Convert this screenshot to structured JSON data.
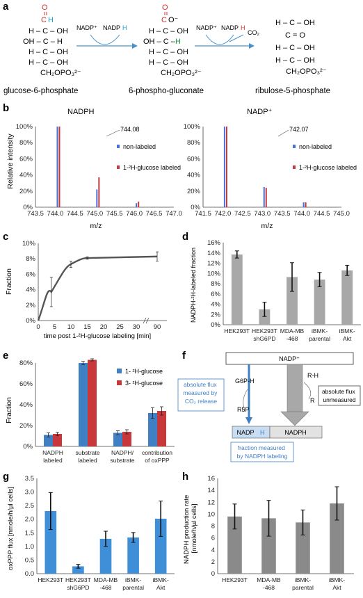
{
  "panels": {
    "a": {
      "letter": "a",
      "g6p": {
        "l1": "O",
        "l1b": "C",
        "l1c": "H",
        "l2": "H – C – OH",
        "l3": "OH – C – H",
        "l4": "H – C – OH",
        "l5": "H – C – OH",
        "l6": "CH₂OPO₃²⁻",
        "name": "glucose-6-phosphate"
      },
      "pg": {
        "l1": "O",
        "l1b": "C",
        "l1c": "O⁻",
        "l2": "H – C – OH",
        "l3": "OH – C –",
        "l3h": "H",
        "l4": "H – C – OH",
        "l5": "H – C – OH",
        "l6": "CH₂OPO₃²⁻",
        "name": "6-phospho-gluconate"
      },
      "r5p": {
        "l1": "H – C – OH",
        "l2": "C = O",
        "l3": "H – C – OH",
        "l4": "H – C – OH",
        "l5": "CH₂OPO₃²⁻",
        "name": "ribulose-5-phosphate"
      },
      "arrow1": {
        "nadp": "NADP⁺",
        "nadph_a": "NADP",
        "nadph_b": "H"
      },
      "arrow2": {
        "nadp": "NADP⁺",
        "nadph_a": "NADP",
        "nadph_b": "H",
        "co2": "CO₂"
      }
    },
    "b": {
      "letter": "b",
      "left": {
        "title": "NADPH",
        "peak_label": "744.08",
        "xlabel": "m/z",
        "ylabel": "Relative intensity"
      },
      "right": {
        "title": "NADP⁺",
        "peak_label": "742.07",
        "xlabel": "m/z"
      },
      "legend": {
        "s1": "non-labeled",
        "s2": "1-²H-glucose labeled"
      }
    },
    "c": {
      "letter": "c",
      "ylabel": "Fraction",
      "xlabel": "time post 1-²H-glucose labeling [min]"
    },
    "d": {
      "letter": "d",
      "ylabel": "NADPH-²H-labeled fraction"
    },
    "e": {
      "letter": "e",
      "ylabel": "Fraction",
      "legend": {
        "s1": "1- ²H-glucose",
        "s2": "3- ²H-glucose"
      }
    },
    "f": {
      "letter": "f",
      "nadp": "NADP⁺",
      "g6ph": "G6P-H",
      "r5p": "R5P",
      "rh": "R-H",
      "r": "R",
      "nadph_left_a": "NADP",
      "nadph_left_b": "H",
      "nadph_right": "NADPH",
      "box1": "absolute flux measured by CO₂ release",
      "box2": "absolute flux unmeasured",
      "box3": "fraction measured by NADPH labeling"
    },
    "g": {
      "letter": "g",
      "ylabel": "oxPPP flux [nmole/h/µl cells]"
    },
    "h": {
      "letter": "h",
      "ylabel": "NADPH production rate [nmole/h/µl cells]"
    }
  },
  "chart_data": [
    {
      "id": "b-left",
      "type": "bar",
      "title": "NADPH",
      "xlabel": "m/z",
      "ylabel": "Relative intensity",
      "xlim": [
        743.5,
        747.0
      ],
      "xticks": [
        "743.5",
        "744.0",
        "744.5",
        "745.0",
        "745.5",
        "746.0",
        "746.5",
        "747.0"
      ],
      "ylim": [
        0,
        100
      ],
      "yticks": [
        "0%",
        "20%",
        "40%",
        "60%",
        "80%",
        "100%"
      ],
      "x": [
        744.08,
        745.08,
        746.08
      ],
      "series": [
        {
          "name": "non-labeled",
          "color": "#4a6fd6",
          "values": [
            100,
            22,
            5
          ]
        },
        {
          "name": "1-²H-glucose labeled",
          "color": "#c8383a",
          "values": [
            100,
            37,
            7
          ]
        }
      ],
      "annotation": "744.08"
    },
    {
      "id": "b-right",
      "type": "bar",
      "title": "NADP⁺",
      "xlabel": "m/z",
      "xlim": [
        741.5,
        745.0
      ],
      "xticks": [
        "741.5",
        "742.0",
        "742.5",
        "743.0",
        "743.5",
        "744.0",
        "744.5",
        "745.0"
      ],
      "ylim": [
        0,
        100
      ],
      "yticks": [
        "0%",
        "20%",
        "40%",
        "60%",
        "80%",
        "100%"
      ],
      "x": [
        742.07,
        743.07,
        744.07
      ],
      "series": [
        {
          "name": "non-labeled",
          "color": "#4a6fd6",
          "values": [
            100,
            25,
            6
          ]
        },
        {
          "name": "1-²H-glucose labeled",
          "color": "#c8383a",
          "values": [
            100,
            24,
            6
          ]
        }
      ],
      "annotation": "742.07"
    },
    {
      "id": "c",
      "type": "line",
      "xlabel": "time post 1-²H-glucose labeling [min]",
      "ylabel": "Fraction",
      "xticks": [
        "0",
        "5",
        "10",
        "15",
        "20",
        "25",
        "30",
        "90"
      ],
      "ylim": [
        0,
        10
      ],
      "yticks": [
        "0%",
        "2%",
        "4%",
        "6%",
        "8%",
        "10%"
      ],
      "points": [
        {
          "x": 0,
          "y": 0,
          "err": 0
        },
        {
          "x": 4,
          "y": 3.7,
          "err": 1.9
        },
        {
          "x": 10,
          "y": 7.3,
          "err": 0.4
        },
        {
          "x": 15,
          "y": 8.1,
          "err": 0.15
        },
        {
          "x": 90,
          "y": 8.3,
          "err": 0.6
        }
      ]
    },
    {
      "id": "d",
      "type": "bar",
      "ylabel": "NADPH-²H-labeled fraction",
      "ylim": [
        0,
        16
      ],
      "yticks": [
        "0%",
        "2%",
        "4%",
        "6%",
        "8%",
        "10%",
        "12%",
        "14%",
        "16%"
      ],
      "categories": [
        "HEK293T",
        "HEK293T shG6PD",
        "MDA-MB -468",
        "iBMK-parental",
        "iBMK-Akt"
      ],
      "values": [
        13.7,
        3.0,
        9.3,
        8.8,
        10.6
      ],
      "errors": [
        0.7,
        1.4,
        2.8,
        1.4,
        1.0
      ],
      "color": "#a8a8a8"
    },
    {
      "id": "e",
      "type": "bar",
      "ylabel": "Fraction",
      "ylim": [
        0,
        80
      ],
      "yticks": [
        "0%",
        "20%",
        "40%",
        "60%",
        "80%"
      ],
      "categories": [
        "NADPH labeled",
        "substrate labeled",
        "NADPH/ substrate",
        "contribution of oxPPP"
      ],
      "series": [
        {
          "name": "1- ²H-glucose",
          "color": "#3f7fc4",
          "values": [
            11,
            80,
            13,
            32
          ],
          "errors": [
            2,
            1.5,
            2,
            5
          ]
        },
        {
          "name": "3- ²H-glucose",
          "color": "#c8383a",
          "values": [
            12,
            83,
            14,
            34
          ],
          "errors": [
            1.5,
            1,
            2,
            4
          ]
        }
      ]
    },
    {
      "id": "g",
      "type": "bar",
      "ylabel": "oxPPP flux [nmole/h/µl cells]",
      "ylim": [
        0,
        3.5
      ],
      "yticks": [
        "0.0",
        "0.5",
        "1.0",
        "1.5",
        "2.0",
        "2.5",
        "3.0",
        "3.5"
      ],
      "categories": [
        "HEK293T",
        "HEK293T shG6PD",
        "MDA-MB -468",
        "iBMK-parental",
        "iBMK-Akt"
      ],
      "values": [
        2.3,
        0.27,
        1.28,
        1.33,
        2.02
      ],
      "errors": [
        0.68,
        0.07,
        0.28,
        0.18,
        0.65
      ],
      "color": "#3f8fd8"
    },
    {
      "id": "h",
      "type": "bar",
      "ylabel": "NADPH production rate [nmole/h/µl cells]",
      "ylim": [
        0,
        16
      ],
      "yticks": [
        "0",
        "2",
        "4",
        "6",
        "8",
        "10",
        "12",
        "14",
        "16"
      ],
      "categories": [
        "HEK293T",
        "MDA-MB -468",
        "iBMK-parental",
        "iBMK-Akt"
      ],
      "values": [
        9.6,
        9.3,
        8.6,
        11.8
      ],
      "errors": [
        2.1,
        3.0,
        2.1,
        2.8
      ],
      "color": "#8a8a8a"
    }
  ]
}
